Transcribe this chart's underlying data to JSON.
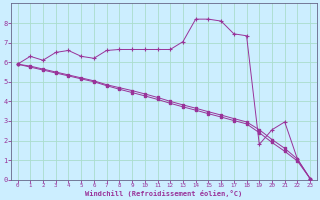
{
  "xlabel": "Windchill (Refroidissement éolien,°C)",
  "background_color": "#cceeff",
  "line_color": "#993399",
  "grid_color": "#aaddcc",
  "xlim": [
    -0.5,
    23.5
  ],
  "ylim": [
    0,
    9
  ],
  "yticks": [
    0,
    1,
    2,
    3,
    4,
    5,
    6,
    7,
    8
  ],
  "xticks": [
    0,
    1,
    2,
    3,
    4,
    5,
    6,
    7,
    8,
    9,
    10,
    11,
    12,
    13,
    14,
    15,
    16,
    17,
    18,
    19,
    20,
    21,
    22,
    23
  ],
  "line1_x": [
    0,
    1,
    2,
    3,
    4,
    5,
    6,
    7,
    8,
    9,
    10,
    11,
    12,
    13,
    14,
    15,
    16,
    17,
    18,
    19,
    20,
    21,
    22,
    23
  ],
  "line1_y": [
    5.9,
    6.3,
    6.1,
    6.5,
    6.6,
    6.3,
    6.2,
    6.6,
    6.65,
    6.65,
    6.65,
    6.65,
    6.65,
    7.05,
    8.2,
    8.2,
    8.1,
    7.45,
    7.35,
    1.8,
    2.55,
    2.95,
    1.05,
    0.05
  ],
  "line2_x": [
    0,
    1,
    2,
    3,
    4,
    5,
    6,
    7,
    8,
    9,
    10,
    11,
    12,
    13,
    14,
    15,
    16,
    17,
    18,
    19,
    20,
    21,
    22,
    23
  ],
  "line2_y": [
    5.9,
    5.8,
    5.65,
    5.5,
    5.35,
    5.2,
    5.05,
    4.85,
    4.7,
    4.55,
    4.38,
    4.2,
    4.0,
    3.82,
    3.65,
    3.47,
    3.3,
    3.12,
    2.95,
    2.55,
    2.05,
    1.6,
    1.05,
    0.05
  ],
  "line3_x": [
    0,
    1,
    2,
    3,
    4,
    5,
    6,
    7,
    8,
    9,
    10,
    11,
    12,
    13,
    14,
    15,
    16,
    17,
    18,
    19,
    20,
    21,
    22,
    23
  ],
  "line3_y": [
    5.9,
    5.75,
    5.6,
    5.45,
    5.3,
    5.15,
    5.0,
    4.8,
    4.62,
    4.45,
    4.28,
    4.1,
    3.9,
    3.72,
    3.55,
    3.37,
    3.2,
    3.02,
    2.85,
    2.4,
    1.9,
    1.45,
    0.95,
    0.05
  ]
}
